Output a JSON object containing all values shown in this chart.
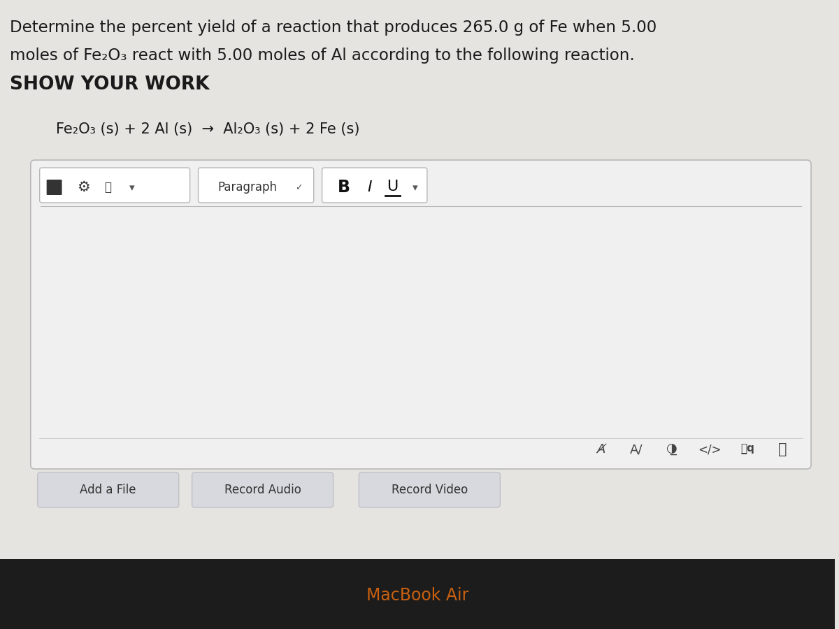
{
  "bg_top_color": "#c8c7c2",
  "bg_bottom_color": "#b8b7b2",
  "screen_bg": "#e5e4e0",
  "title_line1": "Determine the percent yield of a reaction that produces 265.0 g of Fe when 5.00",
  "title_line2": "moles of Fe₂O₃ react with 5.00 moles of Al according to the following reaction.",
  "title_line3": "SHOW YOUR WORK",
  "equation": "Fe₂O₃ (s) + 2 Al (s)  →  Al₂O₃ (s) + 2 Fe (s)",
  "bottom_buttons": [
    "Add a File",
    "Record Audio",
    "Record Video"
  ],
  "macbook_text": "MacBook Air",
  "text_color": "#1a1a1a",
  "editor_bg": "#eeeeee",
  "toolbar_bg": "#e8e8e8",
  "button_bg": "#d8d8dc",
  "border_color": "#b8b8b8",
  "dark_bar_color": "#1c1c1c",
  "macbook_color": "#c86010"
}
